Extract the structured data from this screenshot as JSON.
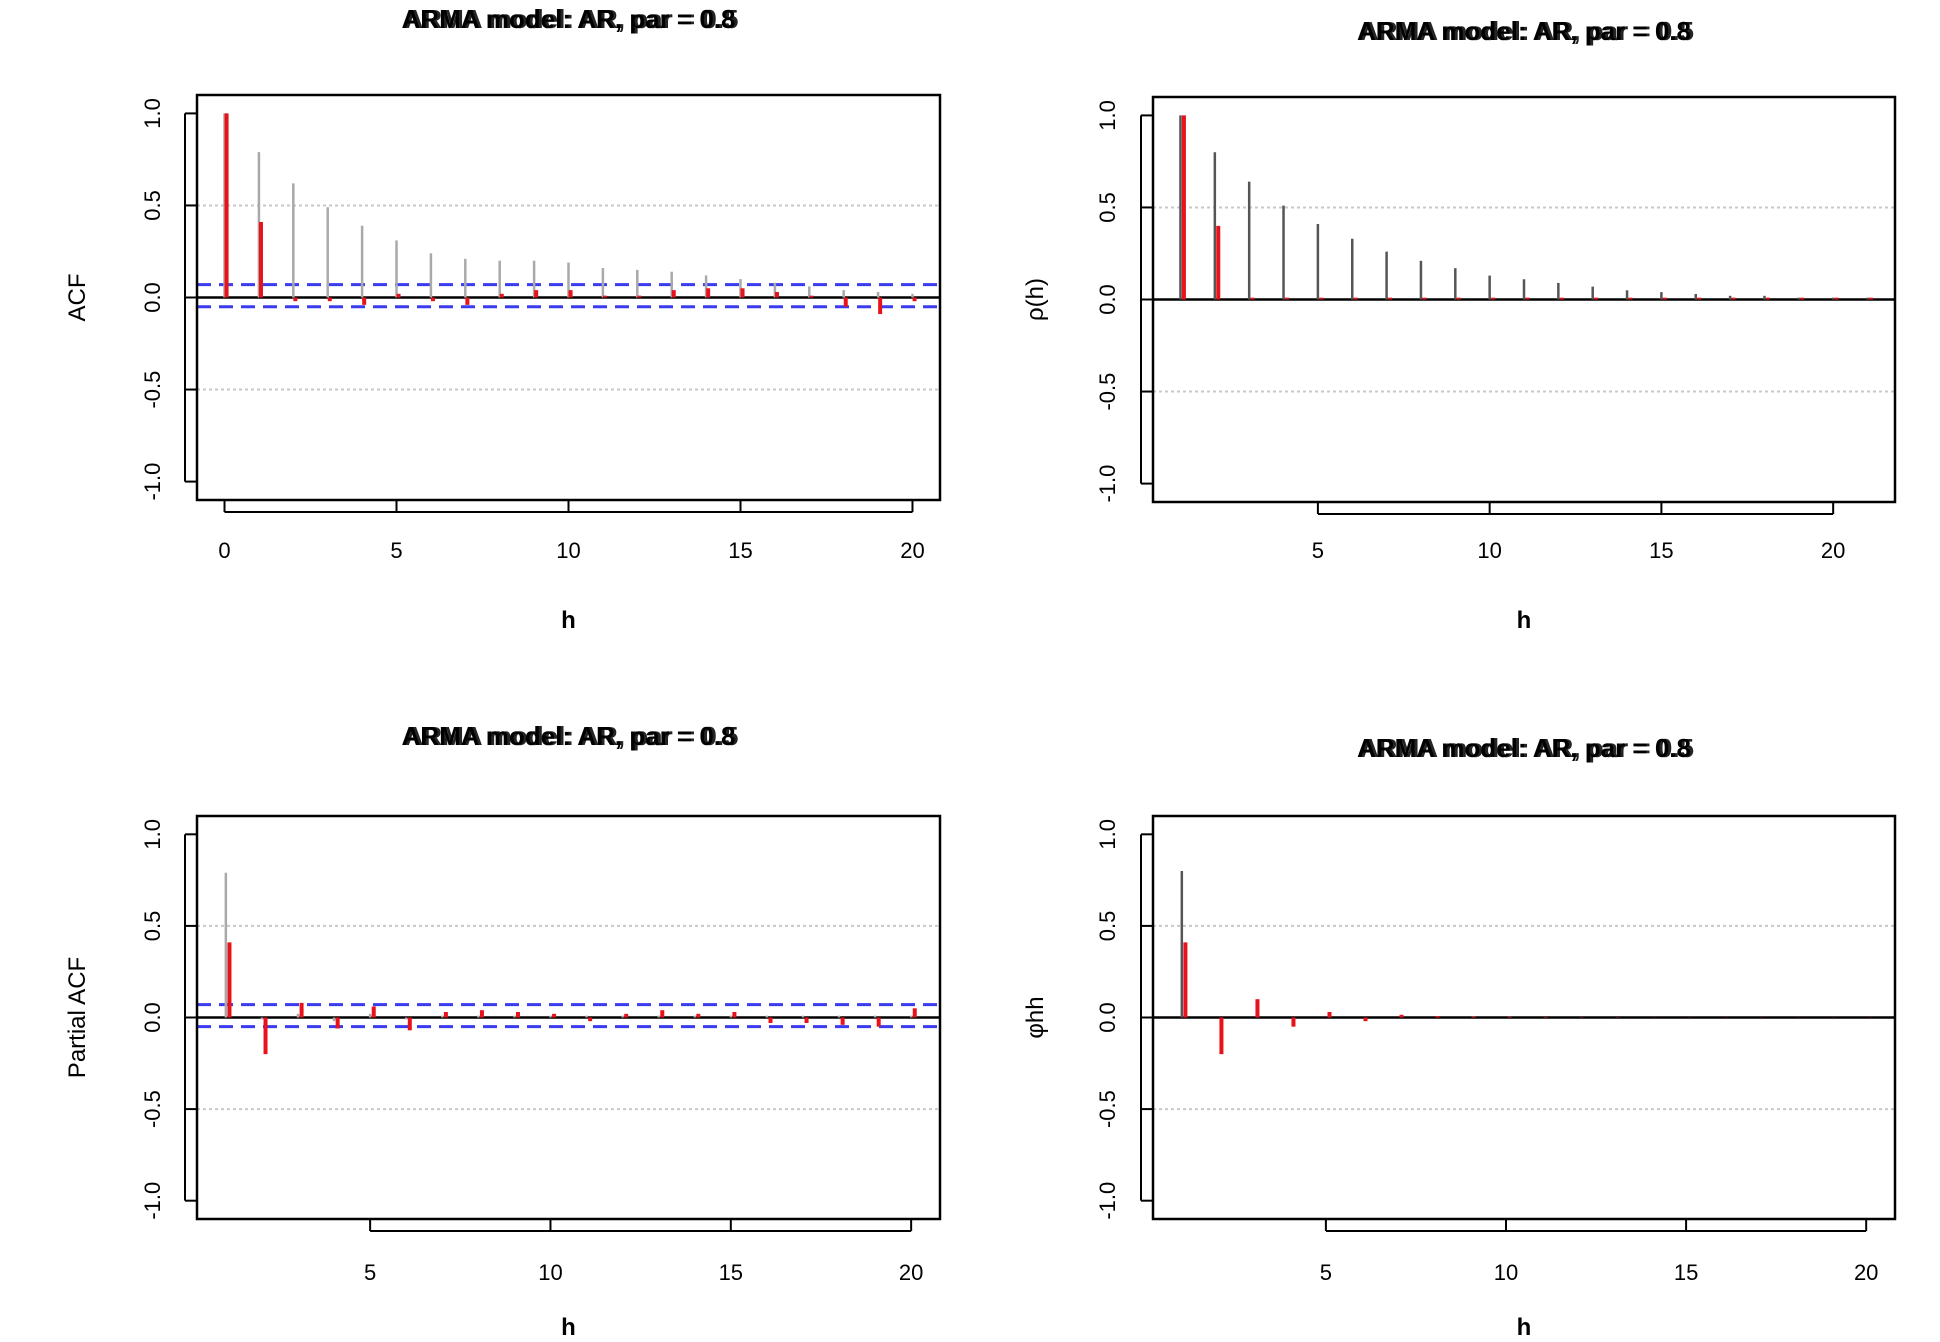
{
  "chart_data": [
    {
      "type": "bar",
      "title": "ARMA model: AR, par = 0.8",
      "overlay_title": "ARMA model: AR, par = 0.5",
      "xlabel": "h",
      "ylabel": "ACF",
      "xlim": [
        -0.8,
        20.8
      ],
      "ylim": [
        -1.1,
        1.1
      ],
      "x_ticks": [
        0,
        5,
        10,
        15,
        20
      ],
      "y_ticks": [
        -1.0,
        -0.5,
        0.0,
        0.5,
        1.0
      ],
      "y_tick_labels": [
        "-1.0",
        "-0.5",
        "0.0",
        "0.5",
        "1.0"
      ],
      "hgrid": [
        -0.5,
        0.5
      ],
      "conf_band": [
        0.07,
        -0.05
      ],
      "series": [
        {
          "name": "",
          "color": "#a9a9a9",
          "offset": 0.0,
          "x": [
            0,
            1,
            2,
            3,
            4,
            5,
            6,
            7,
            8,
            9,
            10,
            11,
            12,
            13,
            14,
            15,
            16,
            17,
            18,
            19,
            20
          ],
          "values": [
            1.0,
            0.79,
            0.62,
            0.49,
            0.39,
            0.31,
            0.24,
            0.21,
            0.2,
            0.2,
            0.19,
            0.16,
            0.15,
            0.14,
            0.12,
            0.1,
            0.08,
            0.06,
            0.04,
            0.03,
            0.02
          ]
        },
        {
          "name": "",
          "color": "#e8121b",
          "offset": 0.06,
          "x": [
            0,
            1,
            2,
            3,
            4,
            5,
            6,
            7,
            8,
            9,
            10,
            11,
            12,
            13,
            14,
            15,
            16,
            17,
            18,
            19,
            20
          ],
          "values": [
            1.0,
            0.41,
            -0.02,
            -0.02,
            -0.04,
            0.02,
            -0.02,
            -0.04,
            0.02,
            0.04,
            0.04,
            0.01,
            0.01,
            0.04,
            0.05,
            0.05,
            0.03,
            0.01,
            -0.05,
            -0.09,
            -0.02
          ]
        }
      ]
    },
    {
      "type": "bar",
      "title": "ARMA model: AR, par = 0.8",
      "overlay_title": "ARMA model: AR, par = 0.5",
      "xlabel": "h",
      "ylabel": "ρ(h)",
      "xlim": [
        0.2,
        21.8
      ],
      "ylim": [
        -1.1,
        1.1
      ],
      "x_ticks": [
        5,
        10,
        15,
        20
      ],
      "y_ticks": [
        -1.0,
        -0.5,
        0.0,
        0.5,
        1.0
      ],
      "y_tick_labels": [
        "-1.0",
        "-0.5",
        "0.0",
        "0.5",
        "1.0"
      ],
      "hgrid": [
        -0.5,
        0.5
      ],
      "series": [
        {
          "name": "",
          "color": "#555555",
          "offset": 0.0,
          "x": [
            1,
            2,
            3,
            4,
            5,
            6,
            7,
            8,
            9,
            10,
            11,
            12,
            13,
            14,
            15,
            16,
            17,
            18,
            19,
            20,
            21
          ],
          "values": [
            1.0,
            0.8,
            0.64,
            0.51,
            0.41,
            0.33,
            0.26,
            0.21,
            0.17,
            0.13,
            0.11,
            0.09,
            0.07,
            0.05,
            0.04,
            0.03,
            0.02,
            0.02,
            0.01,
            0.01,
            0.01
          ]
        },
        {
          "name": "",
          "color": "#e8121b",
          "offset": 0.1,
          "x": [
            1,
            2,
            3,
            4,
            5,
            6,
            7,
            8,
            9,
            10,
            11,
            12,
            13,
            14,
            15,
            16,
            17,
            18,
            19,
            20,
            21
          ],
          "values": [
            1.0,
            0.4,
            0.01,
            0.01,
            0.01,
            0.01,
            0.01,
            0.01,
            0.01,
            0.01,
            0.01,
            0.01,
            0.01,
            0.01,
            0.01,
            0.01,
            0.01,
            0.01,
            0.01,
            0.01,
            0.01
          ]
        }
      ]
    },
    {
      "type": "bar",
      "title": "ARMA model: AR, par = 0.8",
      "overlay_title": "ARMA model: AR, par = 0.5",
      "xlabel": "h",
      "ylabel": "Partial ACF",
      "xlim": [
        0.2,
        20.8
      ],
      "ylim": [
        -1.1,
        1.1
      ],
      "x_ticks": [
        5,
        10,
        15,
        20
      ],
      "y_ticks": [
        -1.0,
        -0.5,
        0.0,
        0.5,
        1.0
      ],
      "y_tick_labels": [
        "-1.0",
        "-0.5",
        "0.0",
        "0.5",
        "1.0"
      ],
      "hgrid": [
        -0.5,
        0.5
      ],
      "conf_band": [
        0.07,
        -0.05
      ],
      "series": [
        {
          "name": "",
          "color": "#a9a9a9",
          "offset": 0.0,
          "x": [
            1,
            2,
            3,
            4,
            5,
            6,
            7,
            8,
            9,
            10,
            11,
            12,
            13,
            14,
            15,
            16,
            17,
            18,
            19,
            20
          ],
          "values": [
            0.79,
            -0.01,
            0.02,
            -0.02,
            0.02,
            -0.01,
            0.01,
            0.01,
            0.01,
            0.01,
            0.01,
            0.01,
            0.01,
            0.01,
            0.01,
            0.01,
            0.01,
            0.01,
            0.01,
            0.01
          ]
        },
        {
          "name": "",
          "color": "#e8121b",
          "offset": 0.1,
          "x": [
            1,
            2,
            3,
            4,
            5,
            6,
            7,
            8,
            9,
            10,
            11,
            12,
            13,
            14,
            15,
            16,
            17,
            18,
            19,
            20
          ],
          "values": [
            0.41,
            -0.2,
            0.08,
            -0.06,
            0.06,
            -0.07,
            0.03,
            0.04,
            0.03,
            0.02,
            -0.02,
            0.02,
            0.04,
            0.02,
            0.03,
            -0.03,
            -0.03,
            -0.04,
            -0.05,
            0.05
          ]
        }
      ]
    },
    {
      "type": "bar",
      "title": "ARMA model: AR, par = 0.8",
      "overlay_title": "ARMA model: AR, par = 0.5",
      "xlabel": "h",
      "ylabel": "φhh",
      "xlim": [
        0.2,
        20.8
      ],
      "ylim": [
        -1.1,
        1.1
      ],
      "x_ticks": [
        5,
        10,
        15,
        20
      ],
      "y_ticks": [
        -1.0,
        -0.5,
        0.0,
        0.5,
        1.0
      ],
      "y_tick_labels": [
        "-1.0",
        "-0.5",
        "0.0",
        "0.5",
        "1.0"
      ],
      "hgrid": [
        -0.5,
        0.5
      ],
      "series": [
        {
          "name": "",
          "color": "#555555",
          "offset": 0.0,
          "x": [
            1,
            2,
            3,
            4,
            5,
            6,
            7,
            8,
            9,
            10,
            11,
            12,
            13,
            14,
            15,
            16,
            17,
            18,
            19,
            20
          ],
          "values": [
            0.8,
            0.0,
            0.0,
            0.0,
            0.0,
            0.0,
            0.0,
            0.0,
            0.0,
            0.0,
            0.0,
            0.0,
            0.0,
            0.0,
            0.0,
            0.0,
            0.0,
            0.0,
            0.0,
            0.0
          ]
        },
        {
          "name": "",
          "color": "#e8121b",
          "offset": 0.1,
          "x": [
            1,
            2,
            3,
            4,
            5,
            6,
            7,
            8,
            9,
            10,
            11,
            12,
            13,
            14,
            15,
            16,
            17,
            18,
            19,
            20
          ],
          "values": [
            0.41,
            -0.2,
            0.1,
            -0.05,
            0.03,
            -0.02,
            0.015,
            0.008,
            0.005,
            0.004,
            0.003,
            0.002,
            0.002,
            0.001,
            0.001,
            0.001,
            0.001,
            0.001,
            0.001,
            0.001
          ]
        }
      ]
    }
  ]
}
